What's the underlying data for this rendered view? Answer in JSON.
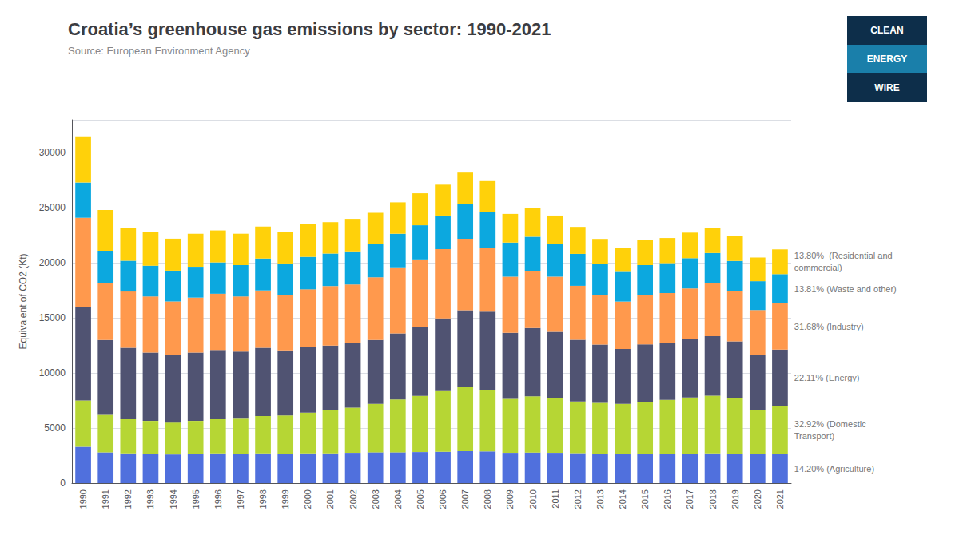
{
  "chart_data": {
    "type": "bar",
    "stacked": true,
    "title": "Croatia’s greenhouse gas emissions by sector: 1990-2021",
    "subtitle": "Source: European Environment Agency",
    "ylabel": "Equivalent of CO2 (Kt)",
    "annotations": [
      "CLEAN",
      "ENERGY",
      "WIRE"
    ],
    "categories": [
      1990,
      1991,
      1992,
      1993,
      1994,
      1995,
      1996,
      1997,
      1998,
      1999,
      2000,
      2001,
      2002,
      2003,
      2004,
      2005,
      2006,
      2007,
      2008,
      2009,
      2010,
      2011,
      2012,
      2013,
      2014,
      2015,
      2016,
      2017,
      2018,
      2019,
      2020,
      2021
    ],
    "series": [
      {
        "name": "14.20% (Agriculture)",
        "values": [
          3300,
          2800,
          2700,
          2650,
          2600,
          2650,
          2700,
          2650,
          2700,
          2650,
          2700,
          2700,
          2750,
          2800,
          2800,
          2820,
          2850,
          2900,
          2880,
          2750,
          2780,
          2750,
          2720,
          2680,
          2640,
          2650,
          2660,
          2680,
          2700,
          2680,
          2620,
          2630
        ]
      },
      {
        "name": "32.92% (Domestic\nTransport)",
        "values": [
          4200,
          3400,
          3100,
          3000,
          2900,
          3000,
          3100,
          3200,
          3400,
          3500,
          3700,
          3900,
          4100,
          4400,
          4800,
          5100,
          5500,
          5800,
          5600,
          4900,
          5100,
          5000,
          4700,
          4600,
          4550,
          4750,
          4900,
          5100,
          5250,
          5000,
          4000,
          4400
        ]
      },
      {
        "name": "22.11% (Energy)",
        "values": [
          8500,
          6800,
          6500,
          6200,
          6100,
          6200,
          6300,
          6100,
          6200,
          5900,
          6000,
          5900,
          5900,
          5800,
          6000,
          6300,
          6600,
          7000,
          7100,
          6000,
          6200,
          6000,
          5600,
          5300,
          5000,
          5200,
          5200,
          5300,
          5400,
          5200,
          5000,
          5100
        ]
      },
      {
        "name": "31.68% (Industry)",
        "values": [
          8100,
          5200,
          5100,
          5100,
          4900,
          5000,
          5100,
          5000,
          5200,
          5000,
          5200,
          5400,
          5300,
          5700,
          6000,
          6100,
          6300,
          6500,
          5800,
          5100,
          5200,
          5000,
          4900,
          4500,
          4300,
          4500,
          4500,
          4600,
          4800,
          4600,
          4100,
          4200
        ]
      },
      {
        "name": "13.81% (Waste and other)",
        "values": [
          3200,
          2900,
          2800,
          2800,
          2800,
          2800,
          2850,
          2850,
          2900,
          2900,
          2950,
          2950,
          3000,
          3000,
          3050,
          3100,
          3050,
          3150,
          3250,
          3100,
          3100,
          3000,
          2900,
          2800,
          2700,
          2700,
          2720,
          2750,
          2750,
          2700,
          2620,
          2650
        ]
      },
      {
        "name": "13.80%  (Residential and\ncommercial)",
        "values": [
          4200,
          3700,
          3000,
          3100,
          2900,
          3000,
          2900,
          2850,
          2900,
          2850,
          2950,
          2850,
          2950,
          2850,
          2850,
          2900,
          2800,
          2850,
          2800,
          2600,
          2600,
          2550,
          2450,
          2300,
          2200,
          2250,
          2280,
          2320,
          2300,
          2250,
          2150,
          2250
        ]
      }
    ],
    "ylim": [
      0,
      33000
    ],
    "yticks": [
      0,
      5000,
      10000,
      15000,
      20000,
      25000,
      30000
    ],
    "grid": true
  }
}
